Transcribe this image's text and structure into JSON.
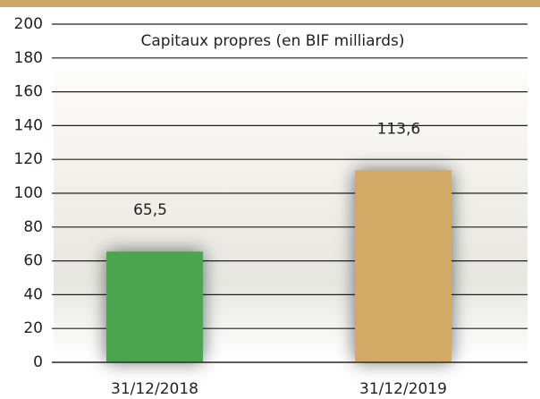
{
  "chart_data": {
    "type": "bar",
    "title": "Capitaux propres (en BIF milliards)",
    "categories": [
      "31/12/2018",
      "31/12/2019"
    ],
    "values": [
      65.5,
      113.6
    ],
    "value_labels": [
      "65,5",
      "113,6"
    ],
    "colors": [
      "#4aa54e",
      "#d2aa66"
    ],
    "ylim": [
      0,
      200
    ],
    "yticks": [
      0,
      20,
      40,
      60,
      80,
      100,
      120,
      140,
      160,
      180,
      200
    ],
    "grid": true
  }
}
